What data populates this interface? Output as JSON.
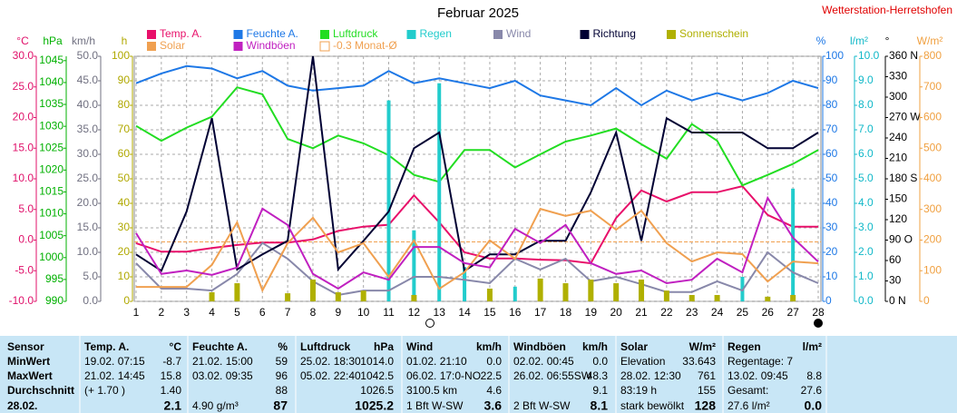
{
  "chart_data": {
    "type": "line",
    "title": "Februar 2025",
    "station": "Wetterstation-Herretshofen",
    "x": [
      1,
      2,
      3,
      4,
      5,
      6,
      7,
      8,
      9,
      10,
      11,
      12,
      13,
      14,
      15,
      16,
      17,
      18,
      19,
      20,
      21,
      22,
      23,
      24,
      25,
      26,
      27,
      28
    ],
    "xlim": [
      1,
      28
    ],
    "xticks": [
      1,
      2,
      3,
      4,
      5,
      6,
      7,
      8,
      9,
      10,
      11,
      12,
      13,
      14,
      15,
      16,
      17,
      18,
      19,
      20,
      21,
      22,
      23,
      24,
      25,
      26,
      27,
      28
    ],
    "grid": true,
    "axes": {
      "y1": {
        "unit": "°C",
        "color": "#e0106a",
        "ylim": [
          -10,
          30
        ],
        "yticks": [
          {
            "value": -10,
            "label": "-10.0"
          },
          {
            "value": -5,
            "label": "-5.0"
          },
          {
            "value": 0,
            "label": "0.0"
          },
          {
            "value": 5,
            "label": "5.0"
          },
          {
            "value": 10,
            "label": "10.0"
          },
          {
            "value": 15,
            "label": "15.0"
          },
          {
            "value": 20,
            "label": "20.0"
          },
          {
            "value": 25,
            "label": "25.0"
          },
          {
            "value": 30,
            "label": "30.0"
          }
        ]
      },
      "y2": {
        "unit": "hPa",
        "color": "#00b000",
        "ylim": [
          990,
          1046
        ],
        "yticks": [
          990,
          995,
          1000,
          1005,
          1010,
          1015,
          1020,
          1025,
          1030,
          1035,
          1040,
          1045
        ]
      },
      "y3": {
        "unit": "km/h",
        "color": "#707080",
        "ylim": [
          0,
          50
        ],
        "yticks": [
          {
            "value": 0,
            "label": "0.0"
          },
          {
            "value": 5,
            "label": "5.0"
          },
          {
            "value": 10,
            "label": "10.0"
          },
          {
            "value": 15,
            "label": "15.0"
          },
          {
            "value": 20,
            "label": "20.0"
          },
          {
            "value": 25,
            "label": "25.0"
          },
          {
            "value": 30,
            "label": "30.0"
          },
          {
            "value": 35,
            "label": "35.0"
          },
          {
            "value": 40,
            "label": "40.0"
          },
          {
            "value": 45,
            "label": "45.0"
          },
          {
            "value": 50,
            "label": "50.0"
          }
        ]
      },
      "y4": {
        "unit": "h",
        "color": "#b0a800",
        "ylim": [
          0,
          100
        ],
        "yticks": [
          0,
          10,
          20,
          30,
          40,
          50,
          60,
          70,
          80,
          90,
          100
        ]
      },
      "y5": {
        "unit": "%",
        "color": "#1e78e6",
        "ylim": [
          0,
          100
        ],
        "yticks": [
          0,
          10,
          20,
          30,
          40,
          50,
          60,
          70,
          80,
          90,
          100
        ]
      },
      "y6": {
        "unit": "l/m²",
        "color": "#10b8c8",
        "ylim": [
          0,
          10
        ],
        "yticks": [
          {
            "value": 0,
            "label": "0.0"
          },
          {
            "value": 1,
            "label": "1.0"
          },
          {
            "value": 2,
            "label": "2.0"
          },
          {
            "value": 3,
            "label": "3.0"
          },
          {
            "value": 4,
            "label": "4.0"
          },
          {
            "value": 5,
            "label": "5.0"
          },
          {
            "value": 6,
            "label": "6.0"
          },
          {
            "value": 7,
            "label": "7.0"
          },
          {
            "value": 8,
            "label": "8.0"
          },
          {
            "value": 9,
            "label": "9.0"
          },
          {
            "value": 10,
            "label": "10.0"
          }
        ]
      },
      "y7": {
        "unit": "°",
        "color": "#000000",
        "ylim": [
          0,
          360
        ],
        "yticks": [
          {
            "value": 0,
            "label": "0 N"
          },
          30,
          60,
          {
            "value": 90,
            "label": "90 O"
          },
          120,
          150,
          {
            "value": 180,
            "label": "180 S"
          },
          210,
          240,
          {
            "value": 270,
            "label": "270 W"
          },
          300,
          330,
          {
            "value": 360,
            "label": "360 N"
          }
        ]
      },
      "y8": {
        "unit": "W/m²",
        "color": "#f0a040",
        "ylim": [
          0,
          800
        ],
        "yticks": [
          0,
          100,
          200,
          300,
          400,
          500,
          600,
          700,
          800
        ]
      }
    },
    "series": [
      {
        "name": "Temp. A.",
        "color": "#e8106a",
        "axis": "y1",
        "values": [
          -0.5,
          -1.9,
          -1.9,
          -1.3,
          -0.8,
          -0.4,
          -0.4,
          0.1,
          1.5,
          2.2,
          2.5,
          7.3,
          2.9,
          -2.0,
          -3.0,
          -3.0,
          -3.2,
          -3.3,
          -3.8,
          3.6,
          8.1,
          6.3,
          7.8,
          7.8,
          8.8,
          4.1,
          2.2,
          2.2
        ]
      },
      {
        "name": "Feuchte A.",
        "color": "#1e78e6",
        "axis": "y5",
        "values": [
          89,
          93,
          96,
          95,
          91,
          94,
          88,
          86,
          87,
          88,
          94,
          89,
          91,
          89,
          87,
          90,
          84,
          82,
          80,
          87,
          80,
          86,
          82,
          85,
          82,
          85,
          90,
          87
        ]
      },
      {
        "name": "Luftdruck",
        "color": "#22dd22",
        "axis": "y2",
        "values": [
          1030.1,
          1026.7,
          1029.7,
          1032.2,
          1038.9,
          1037.3,
          1027.1,
          1025.0,
          1027.9,
          1026.1,
          1023.4,
          1018.9,
          1017.3,
          1024.6,
          1024.6,
          1020.6,
          1023.6,
          1026.5,
          1027.9,
          1029.5,
          1025.9,
          1022.6,
          1030.5,
          1026.7,
          1016.5,
          1018.9,
          1021.4,
          1024.6
        ]
      },
      {
        "name": "Regen",
        "color": "#22cccc",
        "axis": "y6",
        "type": "bar",
        "values": [
          0,
          0,
          0,
          0,
          0,
          0,
          0,
          0,
          0,
          0,
          8.2,
          2.9,
          8.9,
          1.4,
          0,
          0.6,
          0,
          0,
          0,
          0,
          0,
          0,
          0,
          0,
          1.0,
          0,
          4.6,
          0
        ]
      },
      {
        "name": "Wind",
        "color": "#8888aa",
        "axis": "y3",
        "values": [
          7.8,
          2.6,
          2.6,
          2.2,
          5.6,
          11.9,
          8.7,
          4.1,
          1.3,
          2.2,
          2.2,
          5.0,
          5.0,
          4.4,
          3.7,
          8.7,
          6.5,
          8.7,
          4.1,
          5.0,
          3.5,
          1.9,
          1.9,
          4.1,
          2.2,
          10.0,
          5.9,
          3.7
        ]
      },
      {
        "name": "Richtung",
        "color": "#000033",
        "axis": "y7",
        "values": [
          69,
          45,
          132,
          269,
          47,
          69,
          89,
          360,
          47,
          89,
          132,
          225,
          248,
          45,
          69,
          69,
          89,
          89,
          160,
          248,
          89,
          269,
          248,
          248,
          248,
          225,
          225,
          248
        ]
      },
      {
        "name": "Sonnenschein",
        "color": "#b0b000",
        "axis": "y4",
        "type": "bar",
        "values": [
          0,
          0,
          0,
          3.7,
          7.4,
          0,
          3.3,
          8.9,
          3.7,
          4.4,
          0,
          2.6,
          0,
          0,
          5.2,
          0,
          9.3,
          7.4,
          8.9,
          7.4,
          8.9,
          4.4,
          2.6,
          2.6,
          0,
          1.9,
          2.6,
          0
        ]
      },
      {
        "name": "Solar",
        "color": "#f0a050",
        "axis": "y8",
        "values": [
          47,
          47,
          47,
          119,
          258,
          36,
          190,
          273,
          160,
          190,
          80,
          199,
          41,
          95,
          199,
          139,
          302,
          279,
          296,
          234,
          296,
          190,
          130,
          160,
          154,
          65,
          130,
          124
        ]
      },
      {
        "name": "Windböen",
        "color": "#c020c0",
        "axis": "y3",
        "values": [
          13.9,
          5.6,
          6.3,
          5.4,
          6.9,
          18.9,
          15.6,
          5.6,
          2.6,
          5.9,
          4.4,
          11.1,
          11.1,
          7.8,
          6.9,
          14.8,
          11.9,
          15.6,
          7.8,
          5.6,
          6.3,
          3.7,
          4.4,
          8.7,
          5.9,
          21.1,
          13.0,
          8.1
        ]
      }
    ],
    "reference_line": {
      "label": "-0.3 Monat-Ø",
      "value": -0.3,
      "axis": "y1",
      "color": "#f0a050"
    }
  },
  "table": {
    "header": [
      "Sensor",
      "Temp. A.",
      "°C",
      "Feuchte A.",
      "%",
      "Luftdruck",
      "hPa",
      "Wind",
      "km/h",
      "Windböen",
      "km/h",
      "Solar",
      "W/m²",
      "Regen",
      "l/m²"
    ],
    "rows": [
      [
        "MinWert",
        "19.02. 07:15",
        "-8.7",
        "21.02. 15:00",
        "59",
        "25.02. 18:30",
        "1014.0",
        "01.02. 21:10",
        "0.0",
        "02.02. 00:45",
        "0.0",
        "Elevation",
        "33.643",
        "Regentage: 7",
        null
      ],
      [
        "MaxWert",
        "21.02. 14:45",
        "15.8",
        "03.02. 09:35",
        "96",
        "05.02. 22:40",
        "1042.5",
        "06.02. 17:0-NO",
        "22.5",
        "26.02. 06:55SW",
        "48.3",
        "28.02. 12:30",
        "761",
        "13.02. 09:45",
        "8.8"
      ],
      [
        "Durchschnitt",
        "(+ 1.70 )",
        "1.40",
        null,
        "88",
        null,
        "1026.5",
        "3100.5 km",
        "4.6",
        null,
        "9.1",
        "83:19 h",
        "155",
        "Gesamt:",
        "27.6"
      ],
      [
        "28.02.",
        null,
        "2.1",
        "4.90 g/m³",
        "87",
        null,
        "1025.2",
        "1 Bft W-SW",
        "3.6",
        "2 Bft W-SW",
        "8.1",
        "stark bewölkt",
        "128",
        "27.6 l/m²",
        "0.0"
      ]
    ]
  }
}
